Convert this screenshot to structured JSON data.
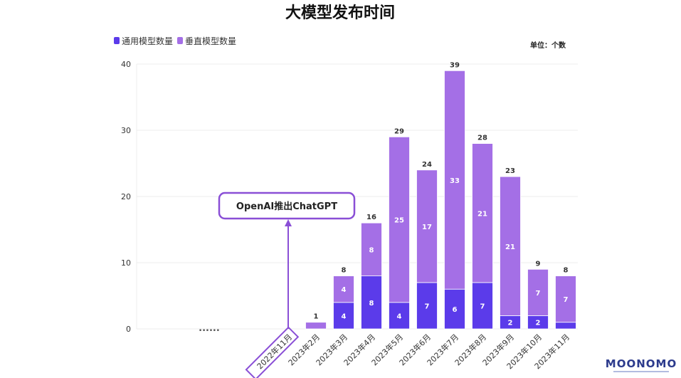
{
  "chart_data": {
    "type": "bar",
    "stacked": true,
    "title": "大模型发布时间",
    "unit": "单位：个数",
    "categories": [
      "2022年11月",
      "2023年2月",
      "2023年3月",
      "2023年4月",
      "2023年5月",
      "2023年6月",
      "2023年7月",
      "2023年8月",
      "2023年9月",
      "2023年10月",
      "2023年11月"
    ],
    "series": [
      {
        "name": "通用模型数量",
        "color": "#5b3bea",
        "values": [
          0,
          0,
          4,
          8,
          4,
          7,
          6,
          7,
          2,
          2,
          1
        ]
      },
      {
        "name": "垂直模型数量",
        "color": "#a46fe6",
        "values": [
          0,
          1,
          4,
          8,
          25,
          17,
          33,
          21,
          21,
          7,
          7
        ]
      }
    ],
    "totals": [
      0,
      1,
      8,
      16,
      29,
      24,
      39,
      28,
      23,
      9,
      8
    ],
    "ylim": [
      0,
      40
    ],
    "yticks": [
      0,
      10,
      20,
      30,
      40
    ],
    "grid": true,
    "legend_position": "top-left",
    "gap_marker": "......",
    "annotation": {
      "text": "OpenAI推出ChatGPT",
      "category": "2022年11月",
      "color": "#8a4fd6"
    },
    "watermark": "MOONOMO"
  }
}
